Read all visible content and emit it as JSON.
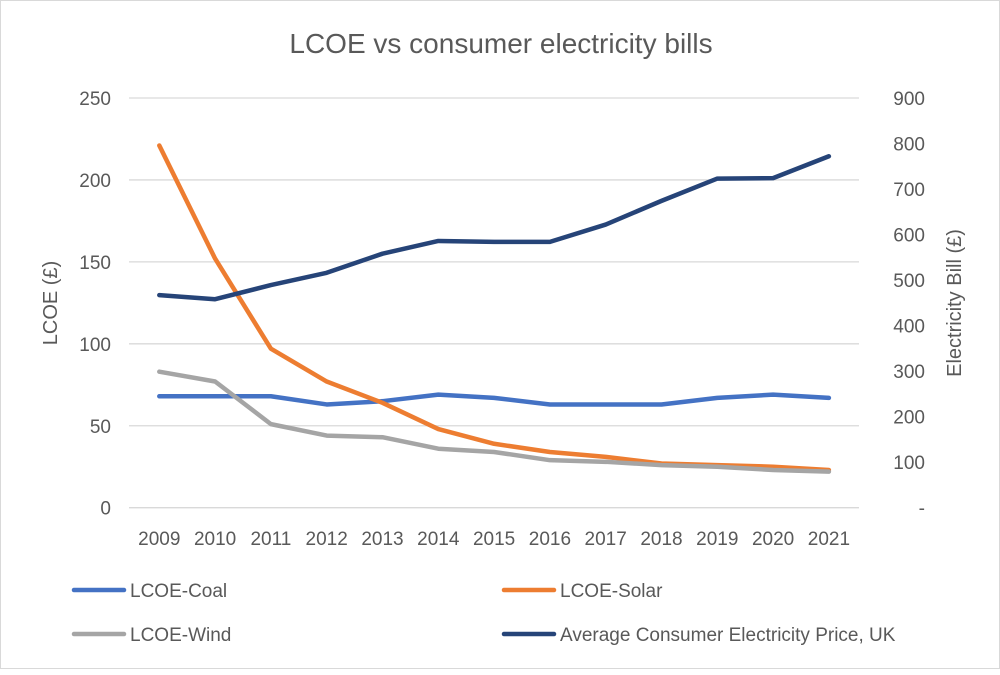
{
  "chart_data": {
    "type": "line",
    "title": "LCOE vs consumer electricity bills",
    "ylabel": "LCOE (£)",
    "y2label": "Electricity Bill (£)",
    "ylim": [
      0,
      250
    ],
    "y2lim": [
      0,
      900
    ],
    "yticks": [
      "0",
      "50",
      "100",
      "150",
      "200",
      "250"
    ],
    "y2ticks": [
      "-",
      "100",
      "200",
      "300",
      "400",
      "500",
      "600",
      "700",
      "800",
      "900"
    ],
    "grid": true,
    "legend_position": "bottom",
    "categories": [
      "2009",
      "2010",
      "2011",
      "2012",
      "2013",
      "2014",
      "2015",
      "2016",
      "2017",
      "2018",
      "2019",
      "2020",
      "2021"
    ],
    "series": [
      {
        "name": "LCOE-Coal",
        "axis": "left",
        "color": "#4472C4",
        "values": [
          68,
          68,
          68,
          63,
          65,
          69,
          67,
          63,
          63,
          63,
          67,
          69,
          67
        ]
      },
      {
        "name": "LCOE-Solar",
        "axis": "left",
        "color": "#ED7D31",
        "values": [
          221,
          152,
          97,
          77,
          64,
          48,
          39,
          34,
          31,
          27,
          26,
          25,
          23
        ]
      },
      {
        "name": "LCOE-Wind",
        "axis": "left",
        "color": "#A5A5A5",
        "values": [
          83,
          77,
          51,
          44,
          43,
          36,
          34,
          29,
          28,
          26,
          25,
          23,
          22
        ]
      },
      {
        "name": "Average Consumer Electricity Price, UK",
        "axis": "right",
        "color": "#264478",
        "values": [
          467,
          458,
          489,
          516,
          558,
          586,
          584,
          584,
          622,
          674,
          723,
          724,
          772
        ]
      }
    ]
  }
}
